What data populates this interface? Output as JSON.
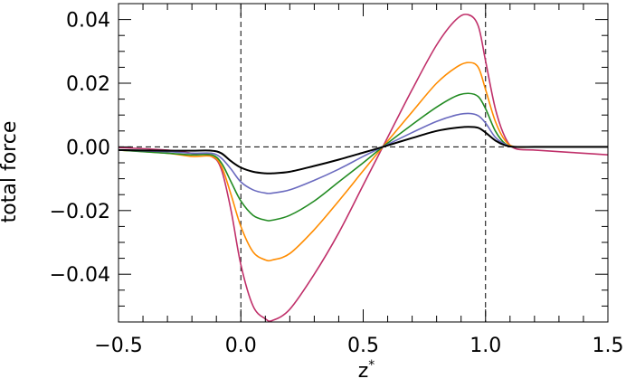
{
  "chart_data": {
    "type": "line",
    "title": "",
    "xlabel": "z",
    "xlabel_superscript": "*",
    "ylabel": "total force",
    "xlim": [
      -0.5,
      1.5
    ],
    "ylim": [
      -0.055,
      0.045
    ],
    "x_ticks": [
      -0.5,
      0.0,
      0.5,
      1.0,
      1.5
    ],
    "x_tick_labels": [
      "−0.5",
      "0.0",
      "0.5",
      "1.0",
      "1.5"
    ],
    "y_ticks": [
      -0.04,
      -0.02,
      0.0,
      0.02,
      0.04
    ],
    "y_tick_labels": [
      "−0.04",
      "−0.02",
      "0.00",
      "0.02",
      "0.04"
    ],
    "reference_lines": {
      "horizontal_y": 0.0,
      "vertical_x": [
        0.0,
        1.0
      ],
      "style": "dashed"
    },
    "grid": false,
    "legend": "none",
    "series": [
      {
        "color": "#c0306a",
        "x": [
          -0.5,
          -0.3,
          -0.2,
          -0.12,
          -0.08,
          -0.04,
          0.0,
          0.05,
          0.1,
          0.13,
          0.2,
          0.3,
          0.4,
          0.5,
          0.58,
          0.7,
          0.8,
          0.88,
          0.93,
          0.97,
          1.0,
          1.04,
          1.08,
          1.12,
          1.2,
          1.3,
          1.4,
          1.5
        ],
        "y": [
          -0.0002,
          -0.001,
          -0.002,
          -0.003,
          -0.007,
          -0.02,
          -0.037,
          -0.05,
          -0.054,
          -0.0545,
          -0.051,
          -0.04,
          -0.027,
          -0.012,
          0.0,
          0.018,
          0.032,
          0.04,
          0.0415,
          0.038,
          0.027,
          0.012,
          0.003,
          -0.0005,
          -0.001,
          -0.0015,
          -0.002,
          -0.0025
        ]
      },
      {
        "color": "#ff8c00",
        "x": [
          -0.5,
          -0.3,
          -0.2,
          -0.12,
          -0.08,
          -0.04,
          0.0,
          0.05,
          0.1,
          0.13,
          0.2,
          0.3,
          0.4,
          0.5,
          0.58,
          0.7,
          0.8,
          0.88,
          0.93,
          0.97,
          1.0,
          1.04,
          1.08,
          1.12,
          1.2,
          1.3,
          1.4,
          1.5
        ],
        "y": [
          -0.001,
          -0.002,
          -0.003,
          -0.003,
          -0.006,
          -0.015,
          -0.025,
          -0.033,
          -0.0355,
          -0.0355,
          -0.0335,
          -0.026,
          -0.017,
          -0.0075,
          0.0,
          0.011,
          0.02,
          0.025,
          0.0265,
          0.025,
          0.018,
          0.008,
          0.002,
          0.0,
          0.0,
          0.0,
          0.0,
          0.0
        ]
      },
      {
        "color": "#228b22",
        "x": [
          -0.5,
          -0.3,
          -0.2,
          -0.12,
          -0.08,
          -0.04,
          0.0,
          0.05,
          0.1,
          0.13,
          0.2,
          0.3,
          0.4,
          0.5,
          0.58,
          0.7,
          0.8,
          0.88,
          0.93,
          0.97,
          1.0,
          1.04,
          1.08,
          1.12,
          1.2,
          1.3,
          1.4,
          1.5
        ],
        "y": [
          -0.001,
          -0.002,
          -0.0025,
          -0.0025,
          -0.005,
          -0.011,
          -0.017,
          -0.0215,
          -0.023,
          -0.023,
          -0.0215,
          -0.017,
          -0.011,
          -0.005,
          0.0,
          0.007,
          0.0125,
          0.016,
          0.0168,
          0.0158,
          0.012,
          0.005,
          0.001,
          0.0,
          0.0,
          0.0,
          0.0,
          0.0
        ]
      },
      {
        "color": "#6a6abf",
        "x": [
          -0.5,
          -0.3,
          -0.2,
          -0.12,
          -0.08,
          -0.04,
          0.0,
          0.05,
          0.1,
          0.13,
          0.2,
          0.3,
          0.4,
          0.5,
          0.58,
          0.7,
          0.8,
          0.88,
          0.93,
          0.97,
          1.0,
          1.04,
          1.08,
          1.12,
          1.2,
          1.3,
          1.4,
          1.5
        ],
        "y": [
          -0.001,
          -0.0015,
          -0.002,
          -0.002,
          -0.0035,
          -0.007,
          -0.011,
          -0.0135,
          -0.0145,
          -0.0145,
          -0.0135,
          -0.0105,
          -0.007,
          -0.003,
          0.0,
          0.0045,
          0.008,
          0.01,
          0.0105,
          0.0098,
          0.0075,
          0.003,
          0.0008,
          0.0,
          0.0,
          0.0,
          0.0,
          0.0
        ]
      },
      {
        "color": "#000000",
        "x": [
          -0.5,
          -0.3,
          -0.2,
          -0.12,
          -0.08,
          -0.04,
          0.0,
          0.05,
          0.1,
          0.13,
          0.2,
          0.3,
          0.4,
          0.5,
          0.58,
          0.7,
          0.8,
          0.88,
          0.93,
          0.97,
          1.0,
          1.04,
          1.08,
          1.12,
          1.2,
          1.3,
          1.4,
          1.5
        ],
        "y": [
          -0.001,
          -0.0012,
          -0.0012,
          -0.0012,
          -0.002,
          -0.0045,
          -0.0065,
          -0.0078,
          -0.0083,
          -0.0083,
          -0.0078,
          -0.006,
          -0.004,
          -0.0018,
          0.0,
          0.0028,
          0.005,
          0.006,
          0.0063,
          0.006,
          0.0045,
          0.002,
          0.0005,
          0.0,
          0.0,
          0.0,
          0.0,
          0.0
        ]
      }
    ]
  }
}
